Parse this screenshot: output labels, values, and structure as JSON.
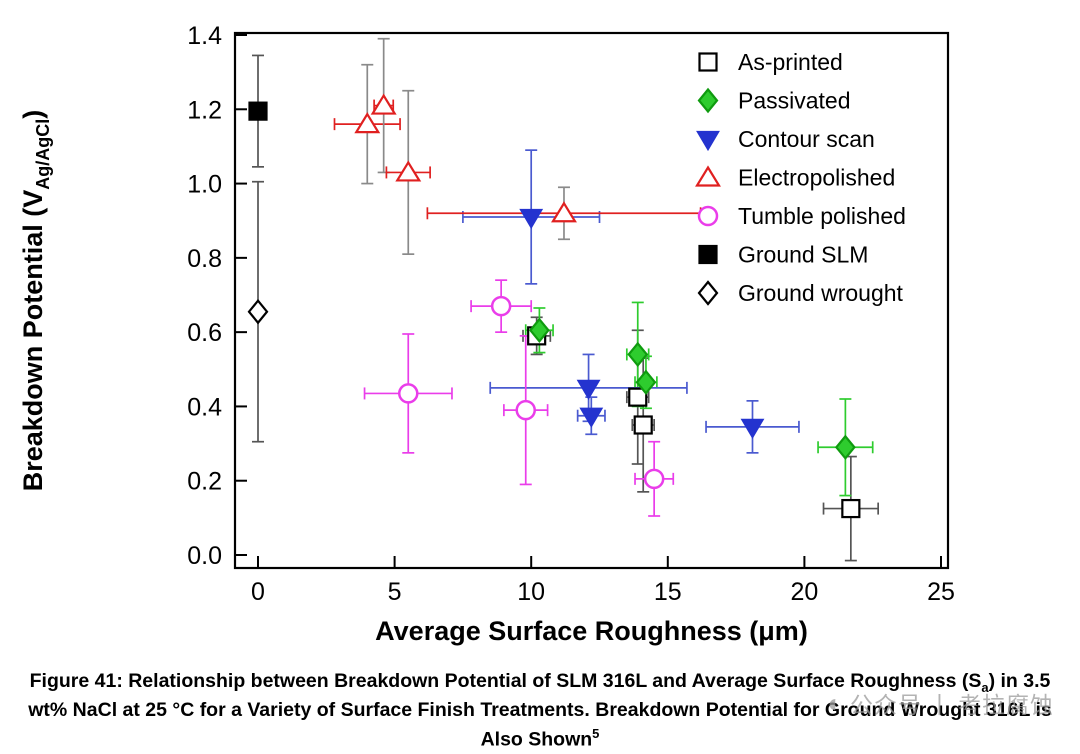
{
  "page": {
    "background": "#ffffff"
  },
  "watermark": {
    "icon": "◐",
    "label_left": "公众号",
    "separator": "丨",
    "label_right": "考拉腐蚀"
  },
  "caption": {
    "pre": "Figure 41: Relationship between Breakdown Potential of SLM 316L and Average Surface Roughness (S",
    "sub": "a",
    "mid": ") in 3.5 wt% NaCl at 25 °C for a Variety of Surface Finish Treatments. Breakdown Potential for Ground Wrought 316L is Also Shown",
    "sup": "5"
  },
  "chart_data": {
    "type": "scatter",
    "title": "",
    "xlabel": "Average Surface Roughness (μm)",
    "ylabel_parts": {
      "pre": "Breakdown Potential (V",
      "sub": "Ag/AgCl",
      "post": ")"
    },
    "xlim": [
      0,
      25
    ],
    "ylim": [
      0,
      1.4
    ],
    "xticks": [
      0,
      5,
      10,
      15,
      20,
      25
    ],
    "yticks": [
      0,
      0.2,
      0.4,
      0.6,
      0.8,
      1.0,
      1.2,
      1.4
    ],
    "grid": false,
    "legend_position": "top-right",
    "series": [
      {
        "name": "As-printed",
        "shape": "square",
        "filled": false,
        "color": "#000000",
        "ecolor": "#555555",
        "points": [
          {
            "x": 10.2,
            "y": 0.59,
            "xe": 0.5,
            "ye": 0.05
          },
          {
            "x": 13.9,
            "y": 0.425,
            "xe": 0.4,
            "ye": 0.18
          },
          {
            "x": 14.1,
            "y": 0.35,
            "xe": 0.4,
            "ye": 0.18
          },
          {
            "x": 21.7,
            "y": 0.125,
            "xe": 1.0,
            "ye": 0.14
          }
        ]
      },
      {
        "name": "Passivated",
        "shape": "diamond",
        "filled": true,
        "color": "#2ecc2e",
        "edge": "#0f9b0f",
        "ecolor": "#2ecc2e",
        "points": [
          {
            "x": 10.3,
            "y": 0.605,
            "xe": 0.5,
            "ye": 0.06
          },
          {
            "x": 13.9,
            "y": 0.54,
            "xe": 0.4,
            "ye": 0.14
          },
          {
            "x": 14.2,
            "y": 0.465,
            "xe": 0.4,
            "ye": 0.07
          },
          {
            "x": 21.5,
            "y": 0.29,
            "xe": 1.0,
            "ye": 0.13
          }
        ]
      },
      {
        "name": "Contour scan",
        "shape": "triangle-down",
        "filled": true,
        "color": "#2433cf",
        "ecolor": "#4a5ad0",
        "points": [
          {
            "x": 10.0,
            "y": 0.91,
            "xe": 2.5,
            "ye": 0.18
          },
          {
            "x": 12.1,
            "y": 0.45,
            "xe": 3.6,
            "ye": 0.09
          },
          {
            "x": 12.2,
            "y": 0.375,
            "xe": 0.5,
            "ye": 0.05
          },
          {
            "x": 18.1,
            "y": 0.345,
            "xe": 1.7,
            "ye": 0.07
          }
        ]
      },
      {
        "name": "Electropolished",
        "shape": "triangle-up",
        "filled": false,
        "color": "#e02020",
        "ecolor": "#e02020",
        "ecolor_v": "#8a8a8a",
        "points": [
          {
            "x": 4.0,
            "y": 1.16,
            "xe": 1.2,
            "ye": 0.16
          },
          {
            "x": 4.6,
            "y": 1.21,
            "xe": 0.35,
            "ye": 0.18
          },
          {
            "x": 5.5,
            "y": 1.03,
            "xe": 0.8,
            "ye": 0.22
          },
          {
            "x": 11.2,
            "y": 0.92,
            "xe": 5.0,
            "ye": 0.07
          }
        ]
      },
      {
        "name": "Tumble polished",
        "shape": "circle",
        "filled": false,
        "color": "#ea3dea",
        "ecolor": "#ea3dea",
        "points": [
          {
            "x": 8.9,
            "y": 0.67,
            "xe": 1.1,
            "ye": 0.07
          },
          {
            "x": 5.5,
            "y": 0.435,
            "xe": 1.6,
            "ye": 0.16
          },
          {
            "x": 9.8,
            "y": 0.39,
            "xe": 0.8,
            "ye": 0.2
          },
          {
            "x": 14.5,
            "y": 0.205,
            "xe": 0.7,
            "ye": 0.1
          }
        ]
      },
      {
        "name": "Ground SLM",
        "shape": "square",
        "filled": true,
        "color": "#000000",
        "ecolor": "#555555",
        "points": [
          {
            "x": 0,
            "y": 1.195,
            "ye": 0.15
          }
        ]
      },
      {
        "name": "Ground wrought",
        "shape": "diamond",
        "filled": false,
        "color": "#000000",
        "ecolor": "#555555",
        "points": [
          {
            "x": 0,
            "y": 0.655,
            "ye": 0.35
          }
        ]
      }
    ]
  }
}
